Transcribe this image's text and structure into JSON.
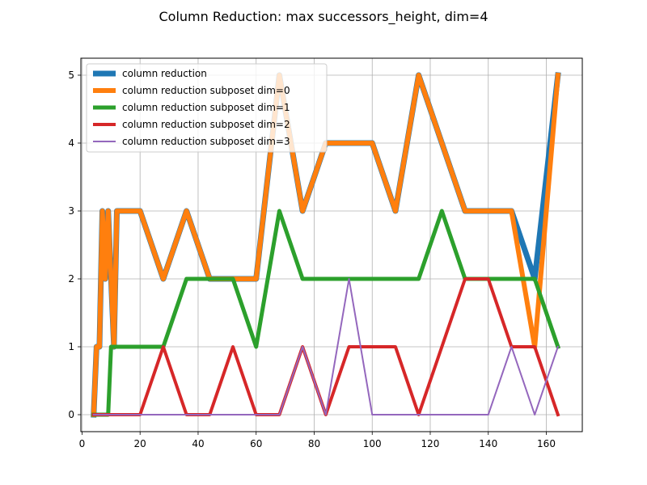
{
  "chart_data": {
    "type": "line",
    "title": "Column Reduction: max successors_height, dim=4",
    "xlabel": "",
    "ylabel": "",
    "xlim": [
      -0.4,
      172.4
    ],
    "ylim": [
      -0.25,
      5.25
    ],
    "xticks": [
      0,
      20,
      40,
      60,
      80,
      100,
      120,
      140,
      160
    ],
    "yticks": [
      0,
      1,
      2,
      3,
      4,
      5
    ],
    "grid": true,
    "legend_position": "upper-left",
    "series": [
      {
        "name": "column reduction",
        "color": "#1f77b4",
        "width": 7,
        "x": [
          4,
          5,
          6,
          7,
          8,
          9,
          10,
          11,
          12,
          20,
          28,
          36,
          44,
          52,
          60,
          68,
          76,
          84,
          92,
          100,
          108,
          116,
          124,
          132,
          140,
          148,
          156,
          164
        ],
        "y": [
          0,
          1,
          1,
          3,
          2,
          3,
          2,
          1,
          3,
          3,
          2,
          3,
          2,
          2,
          2,
          5,
          3,
          4,
          4,
          4,
          3,
          5,
          4,
          3,
          3,
          3,
          2,
          5
        ]
      },
      {
        "name": "column reduction subposet dim=0",
        "color": "#ff7f0e",
        "width": 6,
        "x": [
          4,
          5,
          6,
          7,
          8,
          9,
          10,
          11,
          12,
          20,
          28,
          36,
          44,
          52,
          60,
          68,
          76,
          84,
          92,
          100,
          108,
          116,
          124,
          132,
          140,
          148,
          156,
          164
        ],
        "y": [
          0,
          1,
          1,
          3,
          2,
          3,
          2,
          1,
          3,
          3,
          2,
          3,
          2,
          2,
          2,
          5,
          3,
          4,
          4,
          4,
          3,
          5,
          4,
          3,
          3,
          3,
          1,
          5
        ]
      },
      {
        "name": "column reduction subposet dim=1",
        "color": "#2ca02c",
        "width": 5,
        "x": [
          4,
          9,
          10,
          20,
          28,
          36,
          44,
          52,
          60,
          68,
          76,
          84,
          92,
          100,
          108,
          116,
          124,
          132,
          140,
          148,
          156,
          164
        ],
        "y": [
          0,
          0,
          1,
          1,
          1,
          2,
          2,
          2,
          1,
          3,
          2,
          2,
          2,
          2,
          2,
          2,
          3,
          2,
          2,
          2,
          2,
          1
        ]
      },
      {
        "name": "column reduction subposet dim=2",
        "color": "#d62728",
        "width": 4,
        "x": [
          4,
          12,
          20,
          28,
          36,
          44,
          52,
          60,
          68,
          76,
          84,
          92,
          100,
          108,
          116,
          124,
          132,
          140,
          148,
          156,
          164
        ],
        "y": [
          0,
          0,
          0,
          1,
          0,
          0,
          1,
          0,
          0,
          1,
          0,
          1,
          1,
          1,
          0,
          1,
          2,
          2,
          1,
          1,
          0
        ]
      },
      {
        "name": "column reduction subposet dim=3",
        "color": "#9467bd",
        "width": 2,
        "x": [
          4,
          20,
          28,
          36,
          44,
          52,
          60,
          68,
          76,
          84,
          92,
          100,
          108,
          116,
          124,
          132,
          140,
          148,
          156,
          164
        ],
        "y": [
          0,
          0,
          0,
          0,
          0,
          0,
          0,
          0,
          1,
          0,
          2,
          0,
          0,
          0,
          0,
          0,
          0,
          1,
          0,
          1
        ]
      }
    ]
  }
}
